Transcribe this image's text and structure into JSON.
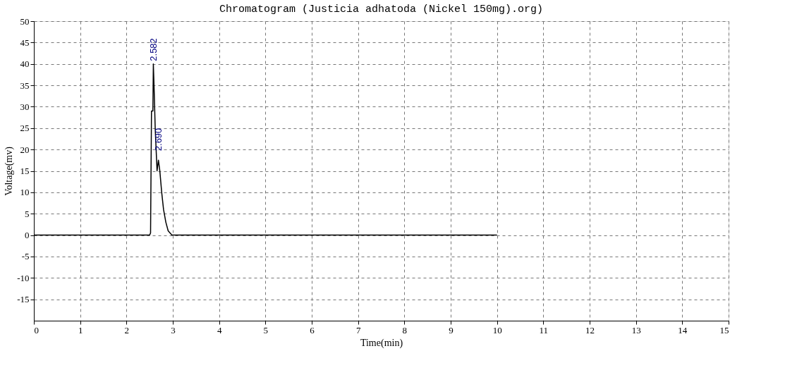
{
  "chart_data": {
    "type": "line",
    "title": "Chromatogram (Justicia adhatoda (Nickel 150mg).org)",
    "xlabel": "Time(min)",
    "ylabel": "Voltage(mv)",
    "x": [
      0,
      2.5,
      2.52,
      2.54,
      2.57,
      2.58,
      2.6,
      2.62,
      2.64,
      2.66,
      2.69,
      2.72,
      2.76,
      2.8,
      2.85,
      2.9,
      2.98,
      10
    ],
    "series": [
      {
        "color": "#000000",
        "values": [
          0,
          0,
          0.5,
          29,
          29,
          40,
          33,
          25,
          20,
          15,
          17.5,
          15,
          10,
          6,
          3,
          1,
          0,
          0
        ]
      }
    ],
    "xlim": [
      0,
      15
    ],
    "xticks": [
      0,
      1,
      2,
      3,
      4,
      5,
      6,
      7,
      8,
      9,
      10,
      11,
      12,
      13,
      14,
      15
    ],
    "ylim": [
      -20,
      50
    ],
    "yticks": [
      -15,
      -10,
      -5,
      0,
      5,
      10,
      15,
      20,
      25,
      30,
      35,
      40,
      45,
      50
    ],
    "grid": true,
    "line_style": "solid",
    "marker": "none",
    "annotations": [
      {
        "text": "2.582",
        "x": 2.582,
        "y": 40
      },
      {
        "text": "2.690",
        "x": 2.69,
        "y": 19
      }
    ]
  }
}
